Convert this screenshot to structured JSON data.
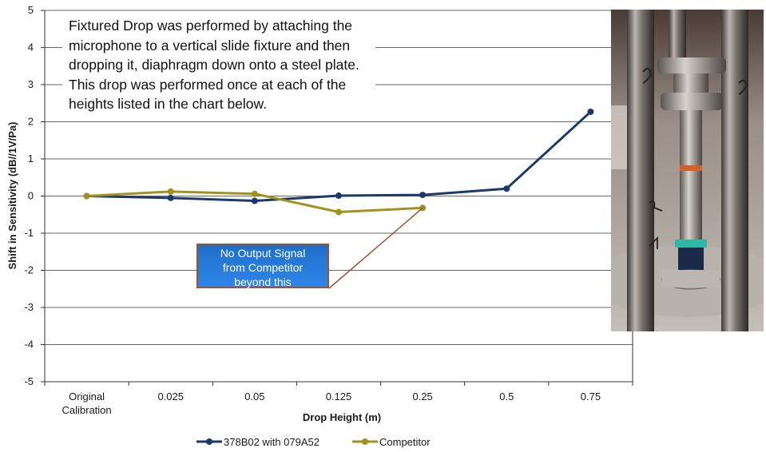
{
  "chart_data": {
    "type": "line",
    "title": "",
    "xlabel": "Drop Height (m)",
    "ylabel": "Shift in Sensitivity (dB//1V/Pa)",
    "categories": [
      "Original Calibration",
      "0.025",
      "0.05",
      "0.125",
      "0.25",
      "0.5",
      "0.75"
    ],
    "category_lines": [
      [
        "Original",
        "Calibration"
      ],
      [
        "0.025"
      ],
      [
        "0.05"
      ],
      [
        "0.125"
      ],
      [
        "0.25"
      ],
      [
        "0.5"
      ],
      [
        "0.75"
      ]
    ],
    "ylim": [
      -5,
      5
    ],
    "yticks": [
      5,
      4,
      3,
      2,
      1,
      0,
      -1,
      -2,
      -3,
      -4,
      -5
    ],
    "grid": true,
    "legend_position": "bottom",
    "series": [
      {
        "name": "378B02 with 079A52",
        "color": "#1b3a6b",
        "values": [
          0,
          -0.05,
          -0.13,
          0.01,
          0.03,
          0.2,
          2.27
        ]
      },
      {
        "name": "Competitor",
        "color": "#a0921c",
        "values": [
          0,
          0.12,
          0.06,
          -0.43,
          -0.32,
          null,
          null
        ]
      }
    ]
  },
  "note_text": "Fixtured Drop was performed by attaching the microphone to a vertical slide fixture and then dropping it, diaphragm down onto a steel plate. This drop was performed once at each of the heights listed in the chart below.",
  "callout": {
    "lines": [
      "No Output Signal",
      "from Competitor",
      "beyond this"
    ],
    "fill_color": "#2f86e6",
    "border_color": "#a0522d"
  },
  "photo": {
    "handwritten_marks": [
      "5",
      "5",
      "2",
      "1"
    ]
  }
}
